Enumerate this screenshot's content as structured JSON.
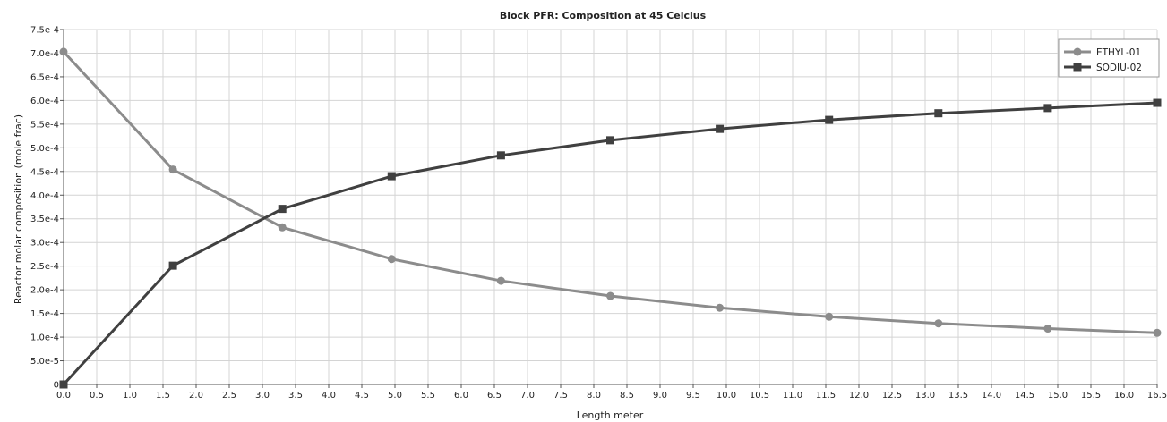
{
  "chart_data": {
    "type": "line",
    "title": "Block PFR: Composition at 45 Celcius",
    "xlabel": "Length meter",
    "ylabel": "Reactor molar composition (mole frac)",
    "xlim": [
      0,
      16.5
    ],
    "ylim": [
      0,
      0.00075
    ],
    "grid": true,
    "legend_position": "top-right",
    "x_ticks": [
      "0.0",
      "0.5",
      "1.0",
      "1.5",
      "2.0",
      "2.5",
      "3.0",
      "3.5",
      "4.0",
      "4.5",
      "5.0",
      "5.5",
      "6.0",
      "6.5",
      "7.0",
      "7.5",
      "8.0",
      "8.5",
      "9.0",
      "9.5",
      "10.0",
      "10.5",
      "11.0",
      "11.5",
      "12.0",
      "12.5",
      "13.0",
      "13.5",
      "14.0",
      "14.5",
      "15.0",
      "15.5",
      "16.0",
      "16.5"
    ],
    "y_ticks": [
      "0",
      "5.0e-5",
      "1.0e-4",
      "1.5e-4",
      "2.0e-4",
      "2.5e-4",
      "3.0e-4",
      "3.5e-4",
      "4.0e-4",
      "4.5e-4",
      "5.0e-4",
      "5.5e-4",
      "6.0e-4",
      "6.5e-4",
      "7.0e-4",
      "7.5e-4"
    ],
    "x": [
      0,
      1.65,
      3.3,
      4.95,
      6.6,
      8.25,
      9.9,
      11.55,
      13.2,
      14.85,
      16.5
    ],
    "series": [
      {
        "name": "ETHYL-01",
        "marker": "circle",
        "color": "#8c8c8c",
        "values": [
          0.000703,
          0.000454,
          0.000332,
          0.000265,
          0.000219,
          0.000187,
          0.000162,
          0.000143,
          0.000129,
          0.000118,
          0.000109
        ]
      },
      {
        "name": "SODIU-02",
        "marker": "square",
        "color": "#404040",
        "values": [
          0,
          0.000251,
          0.000371,
          0.00044,
          0.000484,
          0.000516,
          0.00054,
          0.000559,
          0.000573,
          0.000584,
          0.000595
        ]
      }
    ]
  }
}
